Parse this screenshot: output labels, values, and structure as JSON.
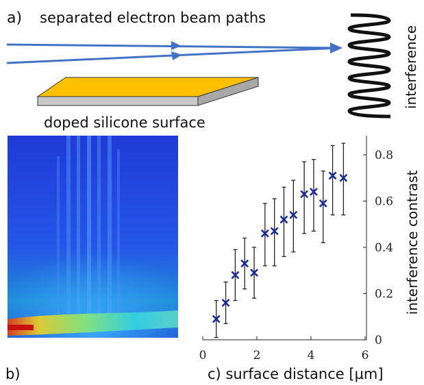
{
  "figure": {
    "panel_a_label": "a)",
    "panel_a_title": "separated electron beam paths",
    "surface_label": "doped silicone surface",
    "interference_label": "interference",
    "panel_b_label": "b)",
    "panel_c_label": "c)",
    "colors": {
      "beam": "#4472c4",
      "surface_top": "#ffc000",
      "surface_side": "#c8c8c8",
      "marker": "#1a2a9c",
      "heatmap_background": "#1b2fc8"
    }
  },
  "chart_data": {
    "type": "scatter",
    "xlabel": "surface distance [µm]",
    "ylabel": "interference contrast",
    "xlim": [
      0,
      6
    ],
    "ylim": [
      0,
      0.85
    ],
    "xticks": [
      0,
      2,
      4,
      6
    ],
    "yticks": [
      0,
      0.2,
      0.4,
      0.6,
      0.8
    ],
    "grid": false,
    "marker": "x",
    "series": [
      {
        "x": [
          0.5,
          0.85,
          1.2,
          1.55,
          1.9,
          2.3,
          2.65,
          3.0,
          3.35,
          3.75,
          4.1,
          4.45,
          4.8,
          5.2
        ],
        "y": [
          0.09,
          0.16,
          0.28,
          0.33,
          0.29,
          0.46,
          0.47,
          0.52,
          0.54,
          0.63,
          0.64,
          0.59,
          0.71,
          0.7
        ],
        "y_err_low": [
          0.08,
          0.09,
          0.11,
          0.11,
          0.11,
          0.14,
          0.15,
          0.16,
          0.16,
          0.17,
          0.17,
          0.17,
          0.17,
          0.16
        ],
        "y_err_high": [
          0.08,
          0.09,
          0.11,
          0.11,
          0.11,
          0.13,
          0.14,
          0.14,
          0.15,
          0.14,
          0.14,
          0.14,
          0.13,
          0.15
        ]
      }
    ]
  }
}
